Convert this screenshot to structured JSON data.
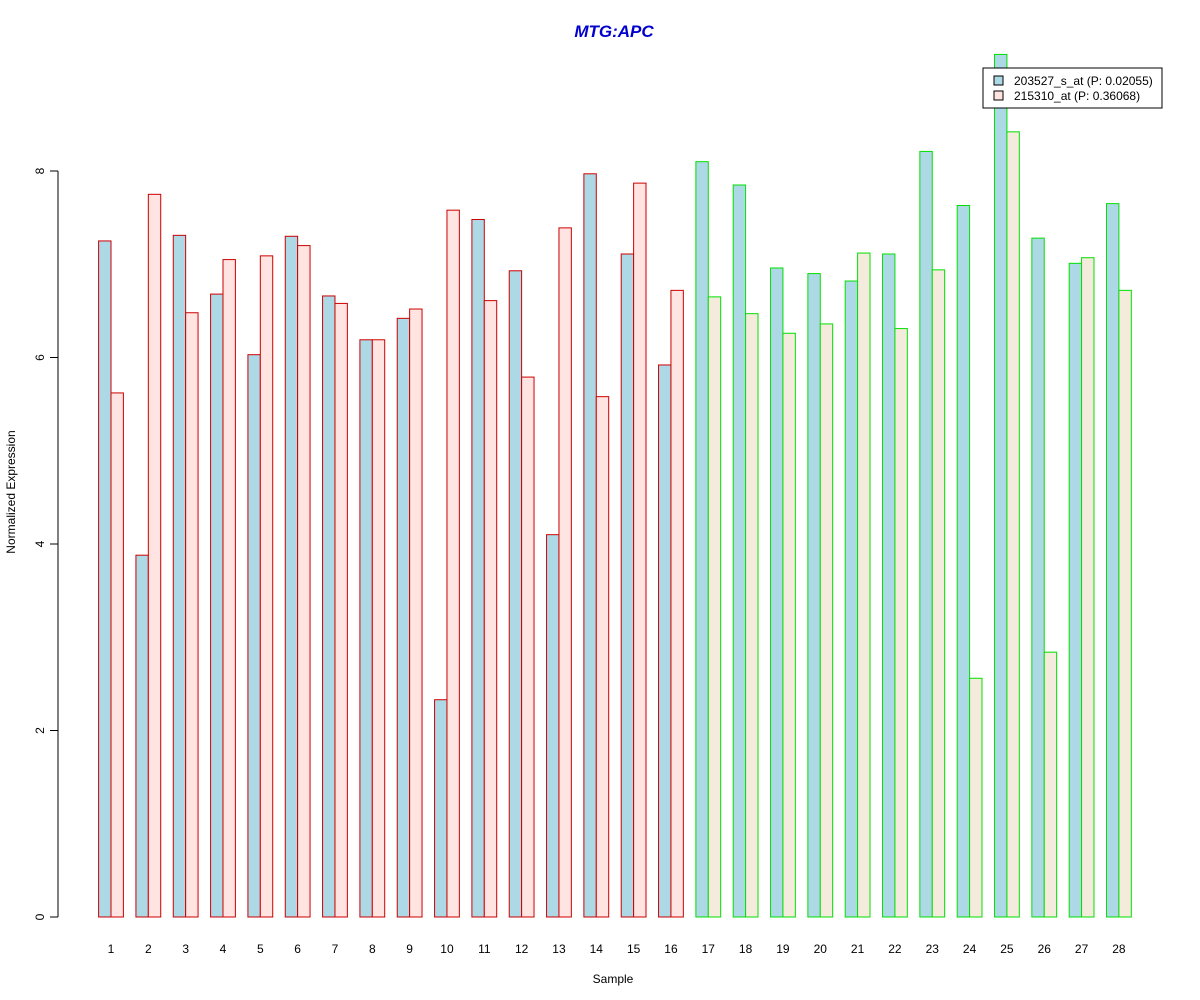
{
  "chart_data": {
    "type": "bar",
    "title": "MTG:APC",
    "xlabel": "Sample",
    "ylabel": "Normalized Expression",
    "ylim": [
      0,
      9.35
    ],
    "yticks": [
      "0",
      "2",
      "4",
      "6",
      "8"
    ],
    "categories": [
      "1",
      "2",
      "3",
      "4",
      "5",
      "6",
      "7",
      "8",
      "9",
      "10",
      "11",
      "12",
      "13",
      "14",
      "15",
      "16",
      "17",
      "18",
      "19",
      "20",
      "21",
      "22",
      "23",
      "24",
      "25",
      "26",
      "27",
      "28"
    ],
    "group_a_count": 16,
    "series": [
      {
        "name": "203527_s_at (P: 0.02055)",
        "values": [
          7.25,
          3.88,
          7.31,
          6.68,
          6.03,
          7.3,
          6.66,
          6.19,
          6.42,
          2.33,
          7.48,
          6.93,
          4.1,
          7.97,
          7.11,
          5.92,
          8.1,
          7.85,
          6.96,
          6.9,
          6.82,
          7.11,
          8.21,
          7.63,
          9.25,
          7.28,
          7.01,
          7.65
        ]
      },
      {
        "name": "215310_at (P: 0.36068)",
        "values": [
          5.62,
          7.75,
          6.48,
          7.05,
          7.09,
          7.2,
          6.58,
          6.19,
          6.52,
          7.58,
          6.61,
          5.79,
          7.39,
          5.58,
          7.87,
          6.72,
          6.65,
          6.47,
          6.26,
          6.36,
          7.12,
          6.31,
          6.94,
          2.56,
          8.42,
          2.84,
          7.07,
          6.72
        ]
      }
    ],
    "colors": {
      "series1_fill": "#add8e6",
      "series2_fill_group_a": "#ffe4e1",
      "series2_fill_group_b": "#f5ebdc",
      "border_group_a": "#cd0000",
      "border_group_b": "#00e000",
      "title": "#0000cd"
    },
    "legend_placement": "top-right",
    "grid": false
  }
}
